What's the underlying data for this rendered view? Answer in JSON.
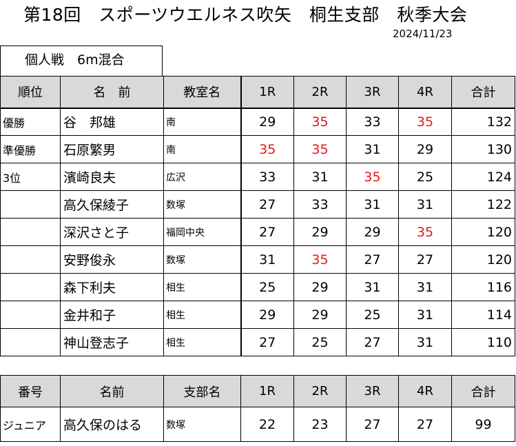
{
  "title": "第18回　スポーツウエルネス吹矢　桐生支部　秋季大会",
  "date": "2024/11/23",
  "event_label": "個人戦　6m混合",
  "main_table": {
    "headers": [
      "順位",
      "名　前",
      "教室名",
      "1R",
      "2R",
      "3R",
      "4R",
      "合計"
    ],
    "rows": [
      {
        "rank": "優勝",
        "name": "谷　邦雄",
        "class": "南",
        "r1": "29",
        "r2": "35",
        "r3": "33",
        "r4": "35",
        "total": "132"
      },
      {
        "rank": "準優勝",
        "name": "石原繁男",
        "class": "南",
        "r1": "35",
        "r2": "35",
        "r3": "31",
        "r4": "29",
        "total": "130"
      },
      {
        "rank": "3位",
        "name": "濱崎良夫",
        "class": "広沢",
        "r1": "33",
        "r2": "31",
        "r3": "35",
        "r4": "25",
        "total": "124"
      },
      {
        "rank": "",
        "name": "高久保綾子",
        "class": "数塚",
        "r1": "27",
        "r2": "33",
        "r3": "31",
        "r4": "31",
        "total": "122"
      },
      {
        "rank": "",
        "name": "深沢さと子",
        "class": "福岡中央",
        "r1": "27",
        "r2": "29",
        "r3": "29",
        "r4": "35",
        "total": "120"
      },
      {
        "rank": "",
        "name": "安野俊永",
        "class": "数塚",
        "r1": "31",
        "r2": "35",
        "r3": "27",
        "r4": "27",
        "total": "120"
      },
      {
        "rank": "",
        "name": "森下利夫",
        "class": "相生",
        "r1": "25",
        "r2": "29",
        "r3": "31",
        "r4": "31",
        "total": "116"
      },
      {
        "rank": "",
        "name": "金井和子",
        "class": "相生",
        "r1": "29",
        "r2": "29",
        "r3": "25",
        "r4": "31",
        "total": "114"
      },
      {
        "rank": "",
        "name": "神山登志子",
        "class": "相生",
        "r1": "27",
        "r2": "25",
        "r3": "27",
        "r4": "31",
        "total": "110"
      }
    ]
  },
  "junior_table": {
    "headers": [
      "番号",
      "名前",
      "支部名",
      "1R",
      "2R",
      "3R",
      "4R",
      "合計"
    ],
    "rows": [
      {
        "rank": "ジュニア",
        "name": "高久保のはる",
        "class": "数塚",
        "r1": "22",
        "r2": "23",
        "r3": "27",
        "r4": "27",
        "total": "99"
      }
    ]
  },
  "colors": {
    "header_bg": "#d9d9d9",
    "perfect_score": "#e0191b"
  },
  "perfect_score_value": "35"
}
